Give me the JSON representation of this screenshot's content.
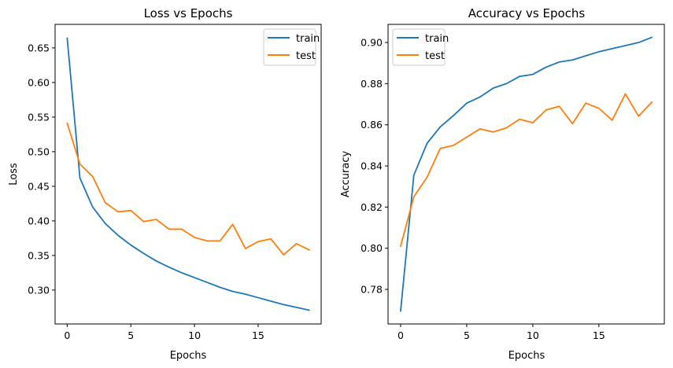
{
  "colors": {
    "train": "#1f77b4",
    "test": "#ff7f0e"
  },
  "chart_data": [
    {
      "type": "line",
      "title": "Loss vs Epochs",
      "xlabel": "Epochs",
      "ylabel": "Loss",
      "x": [
        0,
        1,
        2,
        3,
        4,
        5,
        6,
        7,
        8,
        9,
        10,
        11,
        12,
        13,
        14,
        15,
        16,
        17,
        18,
        19
      ],
      "xlim": [
        -0.95,
        19.95
      ],
      "ylim": [
        0.251,
        0.684
      ],
      "xticks": [
        0,
        5,
        10,
        15
      ],
      "xtick_labels": [
        "0",
        "5",
        "10",
        "15"
      ],
      "yticks": [
        0.3,
        0.35,
        0.4,
        0.45,
        0.5,
        0.55,
        0.6,
        0.65
      ],
      "ytick_labels": [
        "0.30",
        "0.35",
        "0.40",
        "0.45",
        "0.50",
        "0.55",
        "0.60",
        "0.65"
      ],
      "grid": false,
      "legend": "top-right",
      "series": [
        {
          "name": "train",
          "values": [
            0.664,
            0.462,
            0.42,
            0.396,
            0.379,
            0.365,
            0.353,
            0.342,
            0.333,
            0.325,
            0.318,
            0.311,
            0.304,
            0.298,
            0.294,
            0.289,
            0.284,
            0.279,
            0.275,
            0.271
          ]
        },
        {
          "name": "test",
          "values": [
            0.541,
            0.482,
            0.464,
            0.426,
            0.413,
            0.415,
            0.399,
            0.402,
            0.388,
            0.388,
            0.376,
            0.371,
            0.371,
            0.395,
            0.36,
            0.37,
            0.374,
            0.351,
            0.367,
            0.358
          ]
        }
      ]
    },
    {
      "type": "line",
      "title": "Accuracy vs Epochs",
      "xlabel": "Epochs",
      "ylabel": "Accuracy",
      "x": [
        0,
        1,
        2,
        3,
        4,
        5,
        6,
        7,
        8,
        9,
        10,
        11,
        12,
        13,
        14,
        15,
        16,
        17,
        18,
        19
      ],
      "xlim": [
        -0.95,
        19.95
      ],
      "ylim": [
        0.7632,
        0.9088
      ],
      "xticks": [
        0,
        5,
        10,
        15
      ],
      "xtick_labels": [
        "0",
        "5",
        "10",
        "15"
      ],
      "yticks": [
        0.78,
        0.8,
        0.82,
        0.84,
        0.86,
        0.88,
        0.9
      ],
      "ytick_labels": [
        "0.78",
        "0.80",
        "0.82",
        "0.84",
        "0.86",
        "0.88",
        "0.90"
      ],
      "grid": false,
      "legend": "top-left",
      "series": [
        {
          "name": "train",
          "values": [
            0.7695,
            0.8355,
            0.851,
            0.859,
            0.8645,
            0.8705,
            0.8735,
            0.8778,
            0.88,
            0.8835,
            0.8845,
            0.888,
            0.8905,
            0.8915,
            0.8935,
            0.8955,
            0.897,
            0.8985,
            0.9,
            0.9025
          ]
        },
        {
          "name": "test",
          "values": [
            0.801,
            0.825,
            0.8345,
            0.8485,
            0.85,
            0.854,
            0.858,
            0.8565,
            0.8585,
            0.8627,
            0.861,
            0.8672,
            0.869,
            0.8605,
            0.8705,
            0.868,
            0.8622,
            0.875,
            0.8642,
            0.871
          ]
        }
      ]
    }
  ]
}
